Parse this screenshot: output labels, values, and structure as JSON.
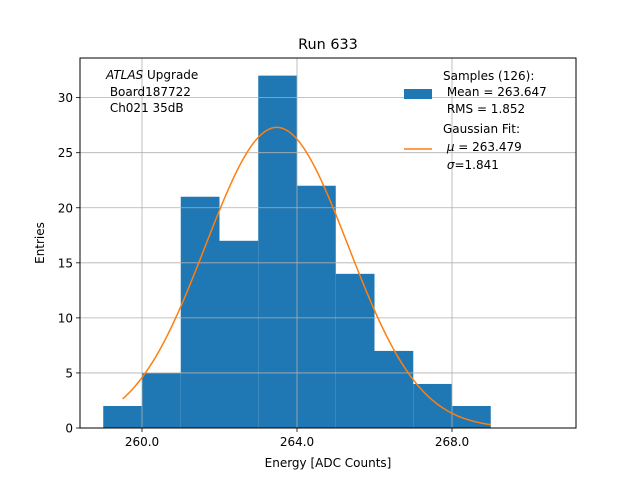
{
  "chart_data": {
    "type": "bar",
    "title": "Run 633",
    "xlabel": "Energy [ADC Counts]",
    "ylabel": "Entries",
    "xlim": [
      258.4,
      271.2
    ],
    "ylim": [
      0,
      33.6
    ],
    "grid": true,
    "legend_position": "top-right",
    "xticks": [
      260,
      264,
      268
    ],
    "xtick_labels": [
      "260.0",
      "264.0",
      "268.0"
    ],
    "yticks": [
      0,
      5,
      10,
      15,
      20,
      25,
      30
    ],
    "yticks_labels": [
      "0",
      "5",
      "10",
      "15",
      "20",
      "25",
      "30"
    ],
    "histogram": {
      "name": "Samples (126):",
      "bin_edges": [
        259,
        260,
        261,
        262,
        263,
        264,
        265,
        266,
        267,
        268,
        269
      ],
      "counts": [
        2,
        5,
        21,
        17,
        32,
        22,
        14,
        7,
        4,
        2
      ],
      "color": "#1f77b4"
    },
    "fit": {
      "name": "Gaussian Fit:",
      "mu": 263.479,
      "sigma": 1.841,
      "amplitude": 27.3,
      "x_range": [
        259.5,
        269.0
      ],
      "color": "#ff7f0e"
    },
    "legend": {
      "samples_line1": "Samples (126):",
      "samples_line2": " Mean = 263.647",
      "samples_line3": " RMS = 1.852",
      "fit_line1": "Gaussian Fit:",
      "fit_mu_prefix": " ",
      "fit_mu_symbol": "μ",
      "fit_mu_suffix": " = 263.479",
      "fit_sigma_prefix": " ",
      "fit_sigma_symbol": "σ",
      "fit_sigma_suffix": "=1.841"
    },
    "annotation": {
      "line1_italic": "ATLAS",
      "line1_rest": " Upgrade",
      "line2": " Board187722",
      "line3": " Ch021 35dB"
    }
  }
}
